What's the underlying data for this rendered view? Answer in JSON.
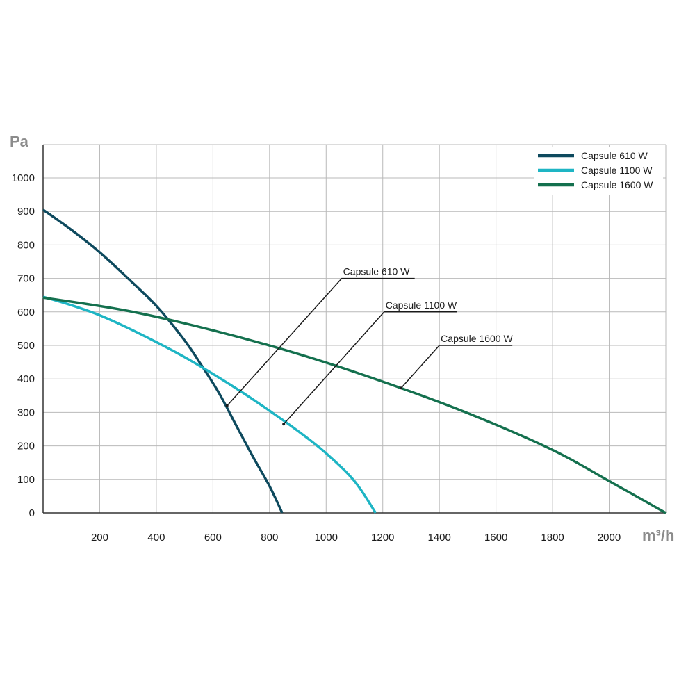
{
  "chart_data": {
    "type": "line",
    "title": "",
    "xlabel": "m³/h",
    "ylabel": "Pa",
    "xlim": [
      0,
      2200
    ],
    "ylim": [
      0,
      1100
    ],
    "xticks": [
      200,
      400,
      600,
      800,
      1000,
      1200,
      1400,
      1600,
      1800,
      2000
    ],
    "yticks": [
      0,
      100,
      200,
      300,
      400,
      500,
      600,
      700,
      800,
      900,
      1000
    ],
    "grid": true,
    "legend_position": "top-right",
    "series": [
      {
        "name": "Capsule 610 W",
        "color": "#0e4a5e",
        "points": [
          [
            0,
            905
          ],
          [
            100,
            845
          ],
          [
            200,
            778
          ],
          [
            300,
            700
          ],
          [
            400,
            618
          ],
          [
            500,
            515
          ],
          [
            560,
            440
          ],
          [
            620,
            360
          ],
          [
            680,
            265
          ],
          [
            740,
            170
          ],
          [
            800,
            80
          ],
          [
            845,
            0
          ]
        ]
      },
      {
        "name": "Capsule 1100 W",
        "color": "#1eb5c4",
        "points": [
          [
            0,
            645
          ],
          [
            100,
            620
          ],
          [
            200,
            590
          ],
          [
            300,
            552
          ],
          [
            400,
            510
          ],
          [
            500,
            465
          ],
          [
            600,
            415
          ],
          [
            700,
            362
          ],
          [
            800,
            305
          ],
          [
            900,
            245
          ],
          [
            1000,
            178
          ],
          [
            1100,
            95
          ],
          [
            1175,
            0
          ]
        ]
      },
      {
        "name": "Capsule 1600 W",
        "color": "#14704e",
        "points": [
          [
            0,
            643
          ],
          [
            300,
            603
          ],
          [
            600,
            545
          ],
          [
            900,
            475
          ],
          [
            1200,
            392
          ],
          [
            1500,
            298
          ],
          [
            1800,
            188
          ],
          [
            2000,
            95
          ],
          [
            2200,
            0
          ]
        ]
      }
    ],
    "annotations": [
      {
        "label": "Capsule 610 W",
        "target": [
          650,
          320
        ],
        "elbow": [
          1055,
          700
        ]
      },
      {
        "label": "Capsule 1100 W",
        "target": [
          850,
          265
        ],
        "elbow": [
          1205,
          600
        ]
      },
      {
        "label": "Capsule 1600 W",
        "target": [
          1265,
          373
        ],
        "elbow": [
          1400,
          500
        ]
      }
    ]
  }
}
